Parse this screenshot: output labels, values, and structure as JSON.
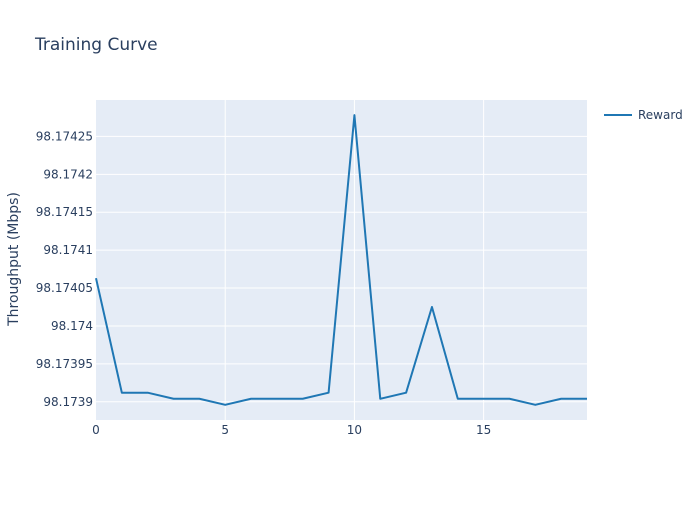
{
  "chart_data": {
    "type": "line",
    "title": "Training Curve",
    "xlabel": "",
    "ylabel": "Throughput (Mbps)",
    "x": [
      0,
      1,
      2,
      3,
      4,
      5,
      6,
      7,
      8,
      9,
      10,
      11,
      12,
      13,
      14,
      15,
      16,
      17,
      18,
      19
    ],
    "series": [
      {
        "name": "Reward",
        "color": "#1f77b4",
        "values": [
          98.174063,
          98.173912,
          98.173912,
          98.173904,
          98.173904,
          98.173896,
          98.173904,
          98.173904,
          98.173904,
          98.173912,
          98.174278,
          98.173904,
          98.173912,
          98.174025,
          98.173904,
          98.173904,
          98.173904,
          98.173896,
          98.173904,
          98.173904
        ]
      }
    ],
    "xlim": [
      0,
      19
    ],
    "ylim": [
      98.173876,
      98.174298
    ],
    "xticks": [
      0,
      5,
      10,
      15
    ],
    "xtick_labels": [
      "0",
      "5",
      "10",
      "15"
    ],
    "yticks": [
      98.1739,
      98.17395,
      98.174,
      98.17405,
      98.1741,
      98.17415,
      98.1742,
      98.17425
    ],
    "ytick_labels": [
      "98.1739",
      "98.17395",
      "98.174",
      "98.17405",
      "98.1741",
      "98.17415",
      "98.1742",
      "98.17425"
    ],
    "grid": true,
    "legend_position": "top-right",
    "plot_background": "#e5ecf6",
    "grid_color": "#ffffff"
  }
}
